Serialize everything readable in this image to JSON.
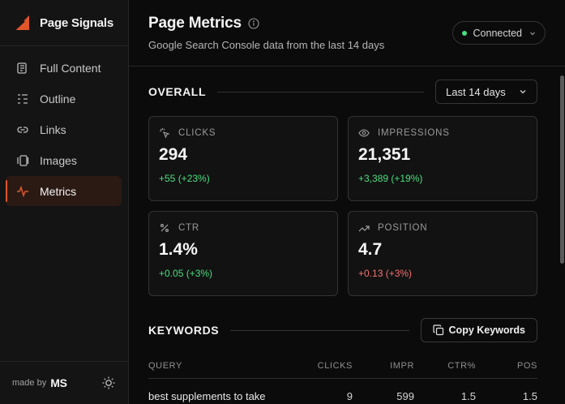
{
  "brand": {
    "name": "Page Signals",
    "accent": "#e0562b"
  },
  "sidebar": {
    "items": [
      {
        "label": "Full Content",
        "icon": "scroll-icon",
        "active": false
      },
      {
        "label": "Outline",
        "icon": "outline-icon",
        "active": false
      },
      {
        "label": "Links",
        "icon": "link-icon",
        "active": false
      },
      {
        "label": "Images",
        "icon": "images-icon",
        "active": false
      },
      {
        "label": "Metrics",
        "icon": "activity-icon",
        "active": true
      }
    ],
    "footer": {
      "made_by": "made by",
      "author": "MS",
      "theme_icon": "sun-icon"
    }
  },
  "header": {
    "title": "Page Metrics",
    "subtitle": "Google Search Console data from the last 14 days",
    "status": {
      "label": "Connected",
      "color": "#4ade80"
    }
  },
  "overall": {
    "title": "OVERALL",
    "range": "Last 14 days",
    "cards": [
      {
        "label": "CLICKS",
        "icon": "cursor-click-icon",
        "value": "294",
        "delta": "+55 (+23%)",
        "trend": "positive"
      },
      {
        "label": "IMPRESSIONS",
        "icon": "eye-icon",
        "value": "21,351",
        "delta": "+3,389 (+19%)",
        "trend": "positive"
      },
      {
        "label": "CTR",
        "icon": "percent-icon",
        "value": "1.4%",
        "delta": "+0.05 (+3%)",
        "trend": "positive"
      },
      {
        "label": "POSITION",
        "icon": "trending-up-icon",
        "value": "4.7",
        "delta": "+0.13 (+3%)",
        "trend": "negative"
      }
    ]
  },
  "keywords": {
    "title": "KEYWORDS",
    "copy_label": "Copy Keywords",
    "columns": {
      "query": "QUERY",
      "clicks": "CLICKS",
      "impr": "IMPR",
      "ctr": "CTR%",
      "pos": "POS"
    },
    "rows": [
      {
        "query": "best supplements to take",
        "clicks": "9",
        "impr": "599",
        "ctr": "1.5",
        "pos": "1.5"
      }
    ]
  }
}
